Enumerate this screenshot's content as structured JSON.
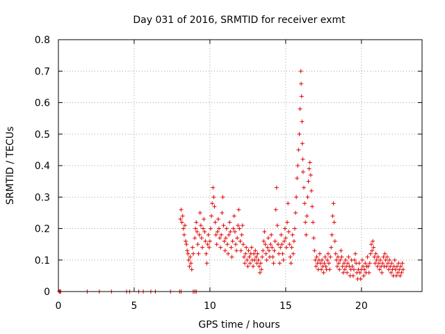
{
  "chart_data": {
    "type": "scatter",
    "title": "Day 031 of 2016, SRMTID for receiver exmt",
    "xlabel": "GPS time / hours",
    "ylabel": "SRMTID / TECUs",
    "xlim": [
      0,
      24.0
    ],
    "ylim": [
      0,
      0.8
    ],
    "xticks": [
      0,
      5,
      10,
      15,
      20
    ],
    "xtick_labels": [
      "0",
      "5",
      "10",
      "15",
      "20"
    ],
    "yticks": [
      0,
      0.1,
      0.2,
      0.3,
      0.4,
      0.5,
      0.6,
      0.7,
      0.8
    ],
    "ytick_labels": [
      "0",
      "0.1",
      "0.2",
      "0.3",
      "0.4",
      "0.5",
      "0.6",
      "0.7",
      "0.8"
    ],
    "grid": true,
    "marker": "+",
    "color": "#e00000",
    "series": [
      {
        "name": "SRMTID",
        "points": [
          [
            0.05,
            0.0
          ],
          [
            0.1,
            0.0
          ],
          [
            0.15,
            0.0
          ],
          [
            1.9,
            0.0
          ],
          [
            2.7,
            0.0
          ],
          [
            3.5,
            0.0
          ],
          [
            4.5,
            0.0
          ],
          [
            4.7,
            0.0
          ],
          [
            5.3,
            0.0
          ],
          [
            5.6,
            0.0
          ],
          [
            6.1,
            0.0
          ],
          [
            6.4,
            0.0
          ],
          [
            7.4,
            0.0
          ],
          [
            8.0,
            0.0
          ],
          [
            8.1,
            0.0
          ],
          [
            8.9,
            0.0
          ],
          [
            9.0,
            0.0
          ],
          [
            9.1,
            0.0
          ],
          [
            8.05,
            0.23
          ],
          [
            8.1,
            0.26
          ],
          [
            8.15,
            0.22
          ],
          [
            8.2,
            0.24
          ],
          [
            8.25,
            0.2
          ],
          [
            8.3,
            0.18
          ],
          [
            8.35,
            0.21
          ],
          [
            8.4,
            0.16
          ],
          [
            8.45,
            0.15
          ],
          [
            8.5,
            0.13
          ],
          [
            8.55,
            0.12
          ],
          [
            8.6,
            0.1
          ],
          [
            8.65,
            0.08
          ],
          [
            8.7,
            0.11
          ],
          [
            8.75,
            0.09
          ],
          [
            8.8,
            0.07
          ],
          [
            8.85,
            0.14
          ],
          [
            8.9,
            0.12
          ],
          [
            9.0,
            0.17
          ],
          [
            9.05,
            0.2
          ],
          [
            9.1,
            0.22
          ],
          [
            9.15,
            0.19
          ],
          [
            9.2,
            0.15
          ],
          [
            9.25,
            0.12
          ],
          [
            9.3,
            0.18
          ],
          [
            9.35,
            0.25
          ],
          [
            9.4,
            0.21
          ],
          [
            9.45,
            0.17
          ],
          [
            9.5,
            0.14
          ],
          [
            9.55,
            0.2
          ],
          [
            9.6,
            0.23
          ],
          [
            9.65,
            0.19
          ],
          [
            9.7,
            0.16
          ],
          [
            9.75,
            0.12
          ],
          [
            9.8,
            0.09
          ],
          [
            9.85,
            0.15
          ],
          [
            9.9,
            0.18
          ],
          [
            9.95,
            0.14
          ],
          [
            10.0,
            0.16
          ],
          [
            10.05,
            0.2
          ],
          [
            10.1,
            0.24
          ],
          [
            10.15,
            0.28
          ],
          [
            10.2,
            0.33
          ],
          [
            10.25,
            0.3
          ],
          [
            10.3,
            0.27
          ],
          [
            10.35,
            0.22
          ],
          [
            10.4,
            0.18
          ],
          [
            10.45,
            0.15
          ],
          [
            10.5,
            0.19
          ],
          [
            10.55,
            0.23
          ],
          [
            10.6,
            0.2
          ],
          [
            10.65,
            0.17
          ],
          [
            10.7,
            0.14
          ],
          [
            10.75,
            0.18
          ],
          [
            10.8,
            0.25
          ],
          [
            10.85,
            0.3
          ],
          [
            10.9,
            0.21
          ],
          [
            10.95,
            0.16
          ],
          [
            11.0,
            0.13
          ],
          [
            11.05,
            0.17
          ],
          [
            11.1,
            0.2
          ],
          [
            11.15,
            0.15
          ],
          [
            11.2,
            0.12
          ],
          [
            11.25,
            0.18
          ],
          [
            11.3,
            0.22
          ],
          [
            11.35,
            0.19
          ],
          [
            11.4,
            0.14
          ],
          [
            11.45,
            0.11
          ],
          [
            11.5,
            0.16
          ],
          [
            11.55,
            0.2
          ],
          [
            11.6,
            0.24
          ],
          [
            11.65,
            0.19
          ],
          [
            11.7,
            0.15
          ],
          [
            11.75,
            0.13
          ],
          [
            11.8,
            0.17
          ],
          [
            11.85,
            0.21
          ],
          [
            11.9,
            0.26
          ],
          [
            11.95,
            0.2
          ],
          [
            12.0,
            0.16
          ],
          [
            12.05,
            0.13
          ],
          [
            12.1,
            0.18
          ],
          [
            12.15,
            0.21
          ],
          [
            12.2,
            0.15
          ],
          [
            12.25,
            0.11
          ],
          [
            12.3,
            0.09
          ],
          [
            12.35,
            0.12
          ],
          [
            12.4,
            0.14
          ],
          [
            12.45,
            0.1
          ],
          [
            12.5,
            0.08
          ],
          [
            12.55,
            0.13
          ],
          [
            12.6,
            0.11
          ],
          [
            12.65,
            0.09
          ],
          [
            12.7,
            0.12
          ],
          [
            12.75,
            0.14
          ],
          [
            12.8,
            0.1
          ],
          [
            12.85,
            0.08
          ],
          [
            12.9,
            0.12
          ],
          [
            12.95,
            0.1
          ],
          [
            13.0,
            0.13
          ],
          [
            13.05,
            0.11
          ],
          [
            13.1,
            0.09
          ],
          [
            13.15,
            0.12
          ],
          [
            13.2,
            0.1
          ],
          [
            13.25,
            0.08
          ],
          [
            13.3,
            0.06
          ],
          [
            13.35,
            0.09
          ],
          [
            13.4,
            0.07
          ],
          [
            13.45,
            0.11
          ],
          [
            13.5,
            0.13
          ],
          [
            13.55,
            0.16
          ],
          [
            13.6,
            0.19
          ],
          [
            13.65,
            0.15
          ],
          [
            13.7,
            0.12
          ],
          [
            13.75,
            0.1
          ],
          [
            13.8,
            0.14
          ],
          [
            13.85,
            0.17
          ],
          [
            13.9,
            0.13
          ],
          [
            13.95,
            0.11
          ],
          [
            14.0,
            0.15
          ],
          [
            14.05,
            0.18
          ],
          [
            14.1,
            0.14
          ],
          [
            14.15,
            0.11
          ],
          [
            14.2,
            0.09
          ],
          [
            14.25,
            0.13
          ],
          [
            14.3,
            0.16
          ],
          [
            14.35,
            0.26
          ],
          [
            14.4,
            0.33
          ],
          [
            14.45,
            0.21
          ],
          [
            14.5,
            0.15
          ],
          [
            14.55,
            0.12
          ],
          [
            14.6,
            0.09
          ],
          [
            14.65,
            0.14
          ],
          [
            14.7,
            0.18
          ],
          [
            14.75,
            0.15
          ],
          [
            14.8,
            0.12
          ],
          [
            14.85,
            0.1
          ],
          [
            14.9,
            0.16
          ],
          [
            14.95,
            0.2
          ],
          [
            15.0,
            0.17
          ],
          [
            15.05,
            0.14
          ],
          [
            15.1,
            0.22
          ],
          [
            15.15,
            0.28
          ],
          [
            15.2,
            0.19
          ],
          [
            15.25,
            0.15
          ],
          [
            15.3,
            0.11
          ],
          [
            15.35,
            0.09
          ],
          [
            15.4,
            0.14
          ],
          [
            15.45,
            0.18
          ],
          [
            15.5,
            0.12
          ],
          [
            15.55,
            0.16
          ],
          [
            15.6,
            0.2
          ],
          [
            15.65,
            0.25
          ],
          [
            15.7,
            0.3
          ],
          [
            15.75,
            0.36
          ],
          [
            15.8,
            0.4
          ],
          [
            15.85,
            0.45
          ],
          [
            15.9,
            0.5
          ],
          [
            15.95,
            0.58
          ],
          [
            16.0,
            0.7
          ],
          [
            16.02,
            0.66
          ],
          [
            16.05,
            0.62
          ],
          [
            16.08,
            0.54
          ],
          [
            16.1,
            0.47
          ],
          [
            16.13,
            0.42
          ],
          [
            16.15,
            0.38
          ],
          [
            16.2,
            0.33
          ],
          [
            16.25,
            0.28
          ],
          [
            16.3,
            0.22
          ],
          [
            16.35,
            0.18
          ],
          [
            16.4,
            0.24
          ],
          [
            16.45,
            0.3
          ],
          [
            16.5,
            0.35
          ],
          [
            16.55,
            0.39
          ],
          [
            16.6,
            0.41
          ],
          [
            16.65,
            0.37
          ],
          [
            16.7,
            0.32
          ],
          [
            16.75,
            0.27
          ],
          [
            16.8,
            0.22
          ],
          [
            16.85,
            0.17
          ],
          [
            16.9,
            0.13
          ],
          [
            16.95,
            0.1
          ],
          [
            17.0,
            0.08
          ],
          [
            17.05,
            0.11
          ],
          [
            17.1,
            0.09
          ],
          [
            17.15,
            0.07
          ],
          [
            17.2,
            0.1
          ],
          [
            17.25,
            0.12
          ],
          [
            17.3,
            0.09
          ],
          [
            17.35,
            0.07
          ],
          [
            17.4,
            0.1
          ],
          [
            17.45,
            0.08
          ],
          [
            17.5,
            0.06
          ],
          [
            17.55,
            0.09
          ],
          [
            17.6,
            0.11
          ],
          [
            17.65,
            0.08
          ],
          [
            17.7,
            0.07
          ],
          [
            17.75,
            0.1
          ],
          [
            17.8,
            0.12
          ],
          [
            17.85,
            0.09
          ],
          [
            17.9,
            0.07
          ],
          [
            17.95,
            0.11
          ],
          [
            18.0,
            0.14
          ],
          [
            18.05,
            0.18
          ],
          [
            18.1,
            0.24
          ],
          [
            18.15,
            0.28
          ],
          [
            18.2,
            0.22
          ],
          [
            18.25,
            0.16
          ],
          [
            18.3,
            0.12
          ],
          [
            18.35,
            0.1
          ],
          [
            18.4,
            0.08
          ],
          [
            18.45,
            0.11
          ],
          [
            18.5,
            0.09
          ],
          [
            18.55,
            0.07
          ],
          [
            18.6,
            0.1
          ],
          [
            18.65,
            0.13
          ],
          [
            18.7,
            0.11
          ],
          [
            18.75,
            0.08
          ],
          [
            18.8,
            0.06
          ],
          [
            18.85,
            0.09
          ],
          [
            18.9,
            0.07
          ],
          [
            18.95,
            0.1
          ],
          [
            19.0,
            0.08
          ],
          [
            19.05,
            0.06
          ],
          [
            19.1,
            0.09
          ],
          [
            19.15,
            0.11
          ],
          [
            19.2,
            0.08
          ],
          [
            19.25,
            0.05
          ],
          [
            19.3,
            0.07
          ],
          [
            19.35,
            0.1
          ],
          [
            19.4,
            0.08
          ],
          [
            19.45,
            0.05
          ],
          [
            19.5,
            0.07
          ],
          [
            19.55,
            0.1
          ],
          [
            19.6,
            0.12
          ],
          [
            19.65,
            0.09
          ],
          [
            19.7,
            0.06
          ],
          [
            19.75,
            0.04
          ],
          [
            19.8,
            0.07
          ],
          [
            19.85,
            0.09
          ],
          [
            19.9,
            0.06
          ],
          [
            19.95,
            0.04
          ],
          [
            20.0,
            0.07
          ],
          [
            20.05,
            0.1
          ],
          [
            20.1,
            0.08
          ],
          [
            20.15,
            0.05
          ],
          [
            20.2,
            0.07
          ],
          [
            20.25,
            0.09
          ],
          [
            20.3,
            0.06
          ],
          [
            20.35,
            0.08
          ],
          [
            20.4,
            0.11
          ],
          [
            20.45,
            0.08
          ],
          [
            20.5,
            0.06
          ],
          [
            20.55,
            0.09
          ],
          [
            20.6,
            0.12
          ],
          [
            20.65,
            0.15
          ],
          [
            20.7,
            0.13
          ],
          [
            20.75,
            0.16
          ],
          [
            20.8,
            0.14
          ],
          [
            20.85,
            0.11
          ],
          [
            20.9,
            0.09
          ],
          [
            20.95,
            0.12
          ],
          [
            21.0,
            0.1
          ],
          [
            21.05,
            0.08
          ],
          [
            21.1,
            0.11
          ],
          [
            21.15,
            0.09
          ],
          [
            21.2,
            0.07
          ],
          [
            21.25,
            0.1
          ],
          [
            21.3,
            0.08
          ],
          [
            21.35,
            0.06
          ],
          [
            21.4,
            0.09
          ],
          [
            21.45,
            0.11
          ],
          [
            21.5,
            0.08
          ],
          [
            21.55,
            0.12
          ],
          [
            21.6,
            0.1
          ],
          [
            21.65,
            0.08
          ],
          [
            21.7,
            0.11
          ],
          [
            21.75,
            0.09
          ],
          [
            21.8,
            0.07
          ],
          [
            21.85,
            0.1
          ],
          [
            21.9,
            0.08
          ],
          [
            21.95,
            0.06
          ],
          [
            22.0,
            0.09
          ],
          [
            22.05,
            0.07
          ],
          [
            22.1,
            0.05
          ],
          [
            22.15,
            0.08
          ],
          [
            22.2,
            0.1
          ],
          [
            22.25,
            0.07
          ],
          [
            22.3,
            0.05
          ],
          [
            22.35,
            0.08
          ],
          [
            22.4,
            0.06
          ],
          [
            22.45,
            0.09
          ],
          [
            22.5,
            0.07
          ],
          [
            22.55,
            0.05
          ],
          [
            22.6,
            0.08
          ],
          [
            22.65,
            0.06
          ],
          [
            22.7,
            0.09
          ],
          [
            22.75,
            0.07
          ]
        ]
      }
    ]
  }
}
